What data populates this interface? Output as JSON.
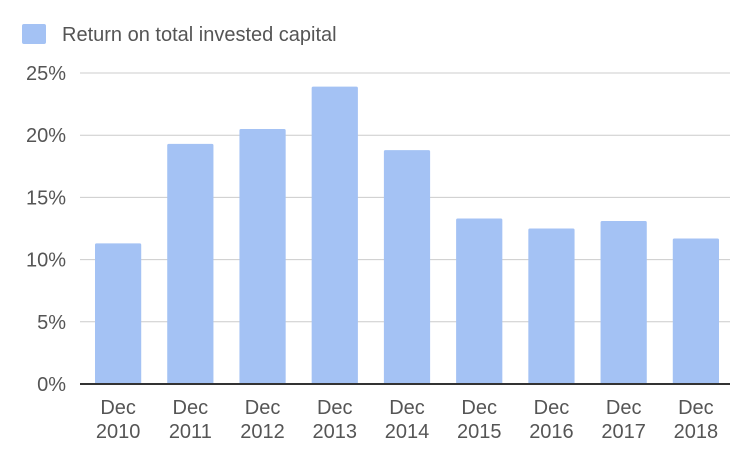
{
  "chart_data": {
    "type": "bar",
    "legend": {
      "position": "top-left",
      "label": "Return on total invested capital",
      "color": "#a4c2f4"
    },
    "series": [
      {
        "name": "Return on total invested capital",
        "color": "#a4c2f4",
        "values": [
          11.3,
          19.3,
          20.5,
          23.9,
          18.8,
          13.3,
          12.5,
          13.1,
          11.7
        ]
      }
    ],
    "categories": [
      [
        "Dec",
        "2010"
      ],
      [
        "Dec",
        "2011"
      ],
      [
        "Dec",
        "2012"
      ],
      [
        "Dec",
        "2013"
      ],
      [
        "Dec",
        "2014"
      ],
      [
        "Dec",
        "2015"
      ],
      [
        "Dec",
        "2016"
      ],
      [
        "Dec",
        "2017"
      ],
      [
        "Dec",
        "2018"
      ]
    ],
    "y_ticks": [
      "0%",
      "5%",
      "10%",
      "15%",
      "20%",
      "25%"
    ],
    "ylim": [
      0,
      25
    ],
    "grid": true,
    "colors": {
      "grid": "#cccccc",
      "axis": "#333333",
      "text": "#555555"
    }
  }
}
